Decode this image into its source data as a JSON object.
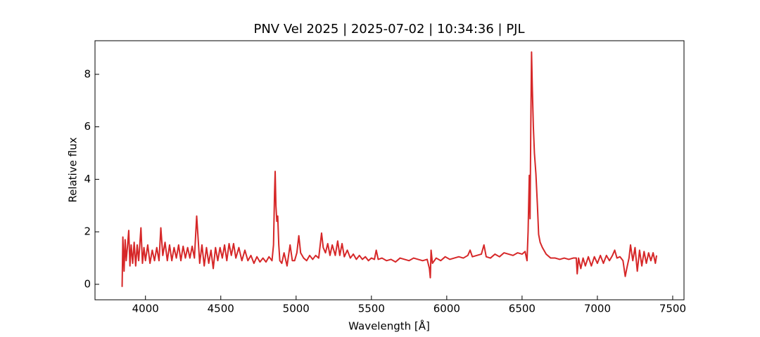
{
  "chart_data": {
    "type": "line",
    "title": "PNV Vel 2025 | 2025-07-02 | 10:34:36 | PJL",
    "x_label": "Wavelength [Å]",
    "y_label": "Relative flux",
    "color": "#d62728",
    "grid": false,
    "xlim": [
      3665,
      7575
    ],
    "ylim": [
      -0.59,
      9.28
    ],
    "xticks": [
      4000,
      4500,
      5000,
      5500,
      6000,
      6500,
      7000,
      7500
    ],
    "yticks": [
      0,
      2,
      4,
      6,
      8
    ],
    "x": [
      3845,
      3850,
      3858,
      3865,
      3872,
      3880,
      3889,
      3897,
      3905,
      3915,
      3925,
      3935,
      3945,
      3955,
      3970,
      3980,
      3990,
      4000,
      4015,
      4030,
      4045,
      4060,
      4075,
      4090,
      4102,
      4115,
      4130,
      4145,
      4160,
      4175,
      4190,
      4205,
      4220,
      4235,
      4250,
      4265,
      4280,
      4295,
      4310,
      4325,
      4340,
      4350,
      4360,
      4375,
      4390,
      4405,
      4420,
      4435,
      4450,
      4465,
      4480,
      4495,
      4510,
      4525,
      4540,
      4555,
      4570,
      4585,
      4600,
      4620,
      4640,
      4660,
      4680,
      4700,
      4720,
      4740,
      4760,
      4780,
      4800,
      4820,
      4840,
      4850,
      4857,
      4861,
      4866,
      4872,
      4878,
      4885,
      4892,
      4905,
      4920,
      4940,
      4960,
      4975,
      4990,
      5005,
      5018,
      5030,
      5050,
      5070,
      5090,
      5110,
      5130,
      5150,
      5169,
      5180,
      5195,
      5210,
      5225,
      5240,
      5260,
      5276,
      5290,
      5305,
      5320,
      5340,
      5360,
      5380,
      5400,
      5420,
      5440,
      5460,
      5480,
      5500,
      5520,
      5532,
      5545,
      5570,
      5600,
      5630,
      5660,
      5690,
      5720,
      5750,
      5780,
      5810,
      5840,
      5870,
      5885,
      5891,
      5896,
      5905,
      5930,
      5960,
      5990,
      6020,
      6050,
      6080,
      6110,
      6140,
      6155,
      6170,
      6200,
      6230,
      6247,
      6262,
      6290,
      6320,
      6350,
      6380,
      6410,
      6440,
      6470,
      6500,
      6520,
      6533,
      6540,
      6548,
      6553,
      6558,
      6563,
      6568,
      6575,
      6582,
      6592,
      6602,
      6610,
      6620,
      6635,
      6660,
      6690,
      6720,
      6750,
      6780,
      6810,
      6840,
      6860,
      6866,
      6875,
      6890,
      6905,
      6920,
      6940,
      6960,
      6980,
      7000,
      7020,
      7040,
      7060,
      7080,
      7100,
      7115,
      7130,
      7150,
      7170,
      7185,
      7195,
      7210,
      7220,
      7235,
      7250,
      7265,
      7280,
      7295,
      7310,
      7325,
      7340,
      7355,
      7370,
      7385,
      7393
    ],
    "values": [
      -0.1,
      1.8,
      0.5,
      1.7,
      0.9,
      1.4,
      2.05,
      0.7,
      1.5,
      0.8,
      1.6,
      0.7,
      1.5,
      0.9,
      2.15,
      0.8,
      1.4,
      0.9,
      1.5,
      0.8,
      1.3,
      0.9,
      1.4,
      0.9,
      2.15,
      1.1,
      1.6,
      0.9,
      1.5,
      0.9,
      1.4,
      1.0,
      1.5,
      0.9,
      1.45,
      1.0,
      1.4,
      1.0,
      1.45,
      1.0,
      2.6,
      1.7,
      0.8,
      1.5,
      0.7,
      1.4,
      0.8,
      1.3,
      0.6,
      1.4,
      0.9,
      1.4,
      1.0,
      1.5,
      0.9,
      1.55,
      1.1,
      1.55,
      1.0,
      1.4,
      0.9,
      1.3,
      0.9,
      1.1,
      0.8,
      1.05,
      0.85,
      1.0,
      0.85,
      1.05,
      0.9,
      1.5,
      3.5,
      4.3,
      3.0,
      2.4,
      2.6,
      1.5,
      0.9,
      0.8,
      1.2,
      0.7,
      1.5,
      0.9,
      0.9,
      1.2,
      1.85,
      1.2,
      1.0,
      0.9,
      1.1,
      0.95,
      1.1,
      1.0,
      1.95,
      1.4,
      1.2,
      1.55,
      1.1,
      1.5,
      1.1,
      1.65,
      1.1,
      1.55,
      1.05,
      1.3,
      1.0,
      1.15,
      0.95,
      1.1,
      0.95,
      1.05,
      0.9,
      1.0,
      0.95,
      1.3,
      0.95,
      1.0,
      0.9,
      0.95,
      0.85,
      1.0,
      0.95,
      0.9,
      1.0,
      0.95,
      0.9,
      0.95,
      0.6,
      0.25,
      1.3,
      0.8,
      1.0,
      0.9,
      1.05,
      0.95,
      1.0,
      1.05,
      1.0,
      1.1,
      1.3,
      1.05,
      1.1,
      1.15,
      1.5,
      1.05,
      1.0,
      1.15,
      1.05,
      1.2,
      1.15,
      1.1,
      1.2,
      1.15,
      1.25,
      0.9,
      2.0,
      4.15,
      2.5,
      6.0,
      8.85,
      7.5,
      6.0,
      5.0,
      4.2,
      3.0,
      1.9,
      1.6,
      1.4,
      1.15,
      1.0,
      1.0,
      0.95,
      1.0,
      0.95,
      1.0,
      1.0,
      0.4,
      1.0,
      0.6,
      1.0,
      0.7,
      1.05,
      0.7,
      1.05,
      0.8,
      1.1,
      0.8,
      1.1,
      0.9,
      1.1,
      1.3,
      1.0,
      1.05,
      0.9,
      0.3,
      0.6,
      1.0,
      1.5,
      0.9,
      1.4,
      0.5,
      1.3,
      0.7,
      1.25,
      0.8,
      1.2,
      0.9,
      1.2,
      0.8,
      1.1
    ]
  }
}
